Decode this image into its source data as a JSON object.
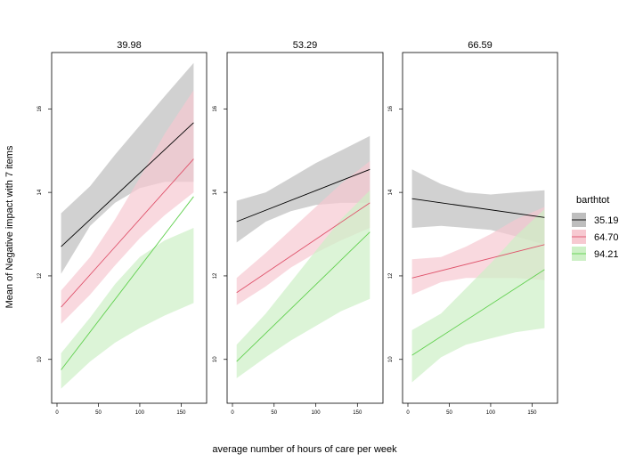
{
  "chart_data": {
    "type": "line",
    "ylabel": "Mean of Negative impact with 7 items",
    "xlabel": "average number of hours of care per week",
    "xlim": [
      0,
      170
    ],
    "ylim": [
      8.95,
      17.35
    ],
    "x_ticks": [
      0,
      50,
      100,
      150
    ],
    "y_ticks": [
      10,
      12,
      14,
      16
    ],
    "legend": {
      "title": "barthtot",
      "placement": "right",
      "entries": [
        {
          "label": "35.19",
          "line_color": "#000000",
          "band_color": "#bebebe"
        },
        {
          "label": "64.70",
          "line_color": "#df536b",
          "band_color": "#f7c9d1"
        },
        {
          "label": "94.21",
          "line_color": "#61d04f",
          "band_color": "#cdf0c6"
        }
      ]
    },
    "panels": [
      {
        "title": "39.98",
        "series": [
          {
            "name": "35.19",
            "x": [
              5,
              165
            ],
            "y": [
              12.7,
              15.67
            ],
            "band_x": [
              5,
              40,
              70,
              100,
              130,
              165
            ],
            "band_lower": [
              12.05,
              13.2,
              13.75,
              14.1,
              14.25,
              14.25
            ],
            "band_upper": [
              13.5,
              14.15,
              14.9,
              15.6,
              16.3,
              17.1
            ]
          },
          {
            "name": "64.70",
            "x": [
              5,
              165
            ],
            "y": [
              11.25,
              14.8
            ],
            "band_x": [
              5,
              40,
              70,
              100,
              130,
              165
            ],
            "band_lower": [
              10.85,
              11.55,
              12.25,
              12.9,
              13.45,
              14.0
            ],
            "band_upper": [
              11.65,
              12.45,
              13.35,
              14.35,
              15.4,
              16.45
            ]
          },
          {
            "name": "94.21",
            "x": [
              5,
              165
            ],
            "y": [
              9.75,
              13.9
            ],
            "band_x": [
              5,
              40,
              70,
              100,
              130,
              165
            ],
            "band_lower": [
              9.3,
              9.95,
              10.4,
              10.75,
              11.05,
              11.35
            ],
            "band_upper": [
              10.15,
              11.0,
              11.8,
              12.45,
              12.85,
              13.15
            ]
          }
        ]
      },
      {
        "title": "53.29",
        "series": [
          {
            "name": "35.19",
            "x": [
              5,
              165
            ],
            "y": [
              13.3,
              14.55
            ],
            "band_x": [
              5,
              40,
              70,
              100,
              130,
              165
            ],
            "band_lower": [
              12.8,
              13.3,
              13.55,
              13.7,
              13.75,
              13.75
            ],
            "band_upper": [
              13.8,
              14.0,
              14.35,
              14.7,
              15.0,
              15.35
            ]
          },
          {
            "name": "64.70",
            "x": [
              5,
              165
            ],
            "y": [
              11.6,
              13.75
            ],
            "band_x": [
              5,
              40,
              70,
              100,
              130,
              165
            ],
            "band_lower": [
              11.3,
              11.75,
              12.2,
              12.55,
              12.85,
              13.15
            ],
            "band_upper": [
              11.95,
              12.55,
              13.1,
              13.65,
              14.2,
              14.75
            ]
          },
          {
            "name": "94.21",
            "x": [
              5,
              165
            ],
            "y": [
              9.95,
              13.05
            ],
            "band_x": [
              5,
              40,
              70,
              100,
              130,
              165
            ],
            "band_lower": [
              9.55,
              10.05,
              10.45,
              10.8,
              11.15,
              11.45
            ],
            "band_upper": [
              10.35,
              11.1,
              11.85,
              12.6,
              13.35,
              14.05
            ]
          }
        ]
      },
      {
        "title": "66.59",
        "series": [
          {
            "name": "35.19",
            "x": [
              5,
              165
            ],
            "y": [
              13.85,
              13.4
            ],
            "band_x": [
              5,
              40,
              70,
              100,
              130,
              165
            ],
            "band_lower": [
              13.15,
              13.2,
              13.15,
              13.1,
              12.95,
              12.75
            ],
            "band_upper": [
              14.55,
              14.2,
              14.0,
              13.95,
              14.0,
              14.05
            ]
          },
          {
            "name": "64.70",
            "x": [
              5,
              165
            ],
            "y": [
              11.95,
              12.75
            ],
            "band_x": [
              5,
              40,
              70,
              100,
              130,
              165
            ],
            "band_lower": [
              11.55,
              11.85,
              11.95,
              11.95,
              11.95,
              11.9
            ],
            "band_upper": [
              12.4,
              12.45,
              12.7,
              13.0,
              13.35,
              13.65
            ]
          },
          {
            "name": "94.21",
            "x": [
              5,
              165
            ],
            "y": [
              10.1,
              12.15
            ],
            "band_x": [
              5,
              40,
              70,
              100,
              130,
              165
            ],
            "band_lower": [
              9.45,
              10.05,
              10.35,
              10.5,
              10.65,
              10.75
            ],
            "band_upper": [
              10.7,
              11.1,
              11.7,
              12.3,
              12.95,
              13.6
            ]
          }
        ]
      }
    ]
  }
}
